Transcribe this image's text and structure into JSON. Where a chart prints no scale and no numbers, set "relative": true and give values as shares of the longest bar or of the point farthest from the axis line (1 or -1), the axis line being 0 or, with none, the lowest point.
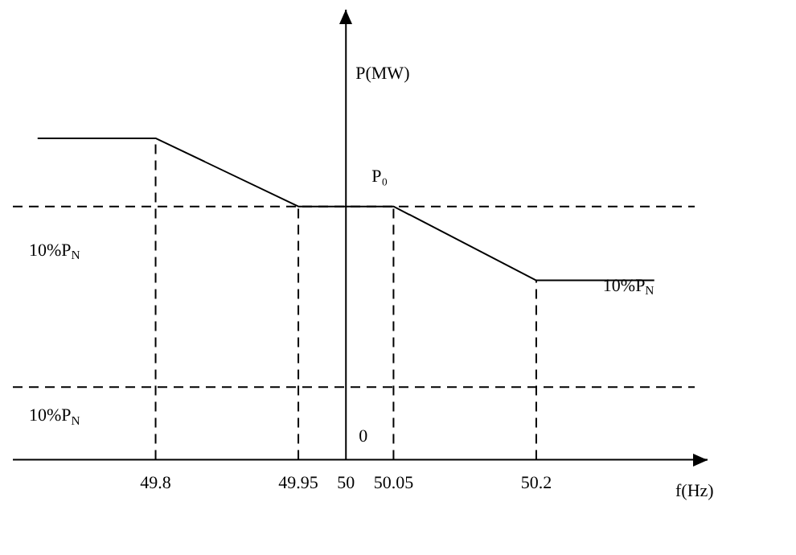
{
  "chart_data": {
    "type": "line",
    "xlabel": "f(Hz)",
    "ylabel": "P(MW)",
    "relative": true,
    "xlim": [
      49.65,
      50.38
    ],
    "xticks": [
      49.8,
      49.95,
      50,
      50.05,
      50.2
    ],
    "series": [
      {
        "color": "#000000",
        "x": [
          49.676,
          49.8,
          49.95,
          50.05,
          50.2,
          50.324
        ],
        "values": [
          1,
          1,
          0.788,
          0.788,
          0.558,
          0.558
        ]
      }
    ],
    "ref_lines": [
      {
        "axis": "y",
        "value": 0.788,
        "line_style": "dashed",
        "color": "#000000"
      },
      {
        "axis": "y",
        "value": 0.226,
        "line_style": "dashed",
        "color": "#000000"
      },
      {
        "axis": "x",
        "value": 50,
        "line_style": "solid",
        "color": "#000000"
      },
      {
        "axis": "x",
        "value": 49.8,
        "line_style": "dashed",
        "color": "#000000"
      },
      {
        "axis": "x",
        "value": 49.95,
        "line_style": "dashed",
        "color": "#000000"
      },
      {
        "axis": "x",
        "value": 50.05,
        "line_style": "dashed",
        "color": "#000000"
      },
      {
        "axis": "x",
        "value": 50.2,
        "line_style": "dashed",
        "color": "#000000"
      }
    ],
    "annotations": [
      "10%P$_{N}$",
      {
        "text": "10%P$_{N}$",
        "x": 50.27,
        "y": 0.54
      },
      "10%P$_{N}$",
      "P₀",
      "0"
    ],
    "grid": false,
    "legend": false,
    "marker": "none",
    "line_style": "solid"
  }
}
